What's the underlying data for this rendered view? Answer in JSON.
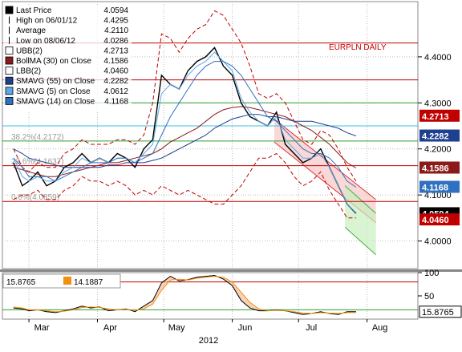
{
  "chart_data": [
    {
      "type": "line",
      "title": "EURPLN DAILY",
      "ylim": [
        3.94,
        4.52
      ],
      "yticks": [
        4.0,
        4.1,
        4.2,
        4.3,
        4.4
      ],
      "ytick_labels": [
        "4.0000",
        "4.1000",
        "4.2000",
        "4.3000",
        "4.4000"
      ],
      "x": [
        "2012-02-23",
        "2012-02-27",
        "2012-03-01",
        "2012-03-05",
        "2012-03-09",
        "2012-03-13",
        "2012-03-17",
        "2012-03-21",
        "2012-03-25",
        "2012-03-29",
        "2012-04-02",
        "2012-04-06",
        "2012-04-10",
        "2012-04-14",
        "2012-04-18",
        "2012-04-22",
        "2012-04-26",
        "2012-04-30",
        "2012-05-04",
        "2012-05-08",
        "2012-05-12",
        "2012-05-16",
        "2012-05-20",
        "2012-05-24",
        "2012-05-28",
        "2012-06-01",
        "2012-06-05",
        "2012-06-09",
        "2012-06-13",
        "2012-06-17",
        "2012-06-21",
        "2012-06-25",
        "2012-06-29",
        "2012-07-03",
        "2012-07-07",
        "2012-07-11",
        "2012-07-15",
        "2012-07-19",
        "2012-07-23",
        "2012-07-27"
      ],
      "xtick_labels": [
        {
          "label": "Mar",
          "date": "2012-03-01"
        },
        {
          "label": "Apr",
          "date": "2012-04-01"
        },
        {
          "label": "May",
          "date": "2012-05-01"
        },
        {
          "label": "Jun",
          "date": "2012-06-01"
        },
        {
          "label": "Jul",
          "date": "2012-07-01"
        },
        {
          "label": "Aug",
          "date": "2012-08-01"
        }
      ],
      "year_label": "2012",
      "series": [
        {
          "name": "Last Price",
          "color": "#000000",
          "values": [
            4.17,
            4.12,
            4.13,
            4.15,
            4.12,
            4.13,
            4.16,
            4.17,
            4.19,
            4.17,
            4.18,
            4.17,
            4.19,
            4.18,
            4.16,
            4.2,
            4.22,
            4.36,
            4.34,
            4.33,
            4.37,
            4.39,
            4.4,
            4.42,
            4.38,
            4.36,
            4.3,
            4.27,
            4.26,
            4.25,
            4.28,
            4.21,
            4.19,
            4.17,
            4.18,
            4.2,
            4.16,
            4.12,
            4.08,
            4.06
          ]
        },
        {
          "name": "UBB(2)",
          "color": "#c00000",
          "values": [
            4.2,
            4.16,
            4.15,
            4.17,
            4.16,
            4.16,
            4.19,
            4.2,
            4.22,
            4.21,
            4.21,
            4.21,
            4.22,
            4.22,
            4.21,
            4.23,
            4.3,
            4.45,
            4.44,
            4.41,
            4.44,
            4.46,
            4.47,
            4.5,
            4.49,
            4.46,
            4.43,
            4.38,
            4.32,
            4.31,
            4.32,
            4.3,
            4.26,
            4.22,
            4.21,
            4.24,
            4.23,
            4.2,
            4.16,
            4.13
          ]
        },
        {
          "name": "BollMA (30) on Close",
          "color": "#8b1a1a",
          "values": [
            4.16,
            4.155,
            4.15,
            4.145,
            4.14,
            4.14,
            4.145,
            4.15,
            4.155,
            4.16,
            4.165,
            4.17,
            4.17,
            4.175,
            4.18,
            4.185,
            4.19,
            4.2,
            4.215,
            4.225,
            4.235,
            4.245,
            4.26,
            4.275,
            4.285,
            4.29,
            4.292,
            4.29,
            4.285,
            4.28,
            4.275,
            4.27,
            4.26,
            4.25,
            4.24,
            4.225,
            4.21,
            4.19,
            4.17,
            4.1586
          ]
        },
        {
          "name": "LBB(2)",
          "color": "#c00000",
          "values": [
            4.09,
            4.1,
            4.1,
            4.11,
            4.09,
            4.09,
            4.11,
            4.12,
            4.14,
            4.13,
            4.13,
            4.12,
            4.13,
            4.12,
            4.1,
            4.11,
            4.1,
            4.12,
            4.11,
            4.1,
            4.11,
            4.1,
            4.09,
            4.08,
            4.08,
            4.1,
            4.12,
            4.15,
            4.18,
            4.18,
            4.19,
            4.17,
            4.14,
            4.12,
            4.13,
            4.15,
            4.11,
            4.08,
            4.05,
            4.05
          ]
        },
        {
          "name": "SMAVG (55) on Close",
          "color": "#1f3f8f",
          "values": [
            4.2,
            4.19,
            4.18,
            4.175,
            4.17,
            4.165,
            4.16,
            4.16,
            4.16,
            4.16,
            4.16,
            4.165,
            4.165,
            4.17,
            4.17,
            4.17,
            4.175,
            4.18,
            4.19,
            4.2,
            4.21,
            4.22,
            4.23,
            4.245,
            4.255,
            4.265,
            4.27,
            4.275,
            4.275,
            4.27,
            4.27,
            4.265,
            4.26,
            4.26,
            4.26,
            4.255,
            4.25,
            4.245,
            4.235,
            4.2282
          ]
        },
        {
          "name": "SMAVG (5) on Close",
          "color": "#5aa8e8",
          "values": [
            4.18,
            4.14,
            4.13,
            4.14,
            4.13,
            4.13,
            4.15,
            4.16,
            4.18,
            4.17,
            4.18,
            4.17,
            4.18,
            4.18,
            4.17,
            4.19,
            4.21,
            4.32,
            4.34,
            4.33,
            4.36,
            4.38,
            4.39,
            4.41,
            4.39,
            4.37,
            4.31,
            4.28,
            4.26,
            4.25,
            4.27,
            4.22,
            4.2,
            4.18,
            4.18,
            4.19,
            4.16,
            4.12,
            4.08,
            4.0612
          ]
        },
        {
          "name": "SMAVG (14) on Close",
          "color": "#3070c0",
          "values": [
            4.18,
            4.16,
            4.14,
            4.14,
            4.14,
            4.13,
            4.14,
            4.15,
            4.16,
            4.17,
            4.17,
            4.17,
            4.18,
            4.18,
            4.17,
            4.18,
            4.19,
            4.23,
            4.27,
            4.3,
            4.33,
            4.36,
            4.38,
            4.39,
            4.39,
            4.38,
            4.36,
            4.33,
            4.3,
            4.27,
            4.26,
            4.24,
            4.22,
            4.2,
            4.19,
            4.19,
            4.18,
            4.16,
            4.13,
            4.1168
          ]
        }
      ],
      "legend": {
        "placement": "top-left",
        "entries": [
          {
            "name": "Last Price",
            "value": "4.0594",
            "swatch": "#000000",
            "marker": "box"
          },
          {
            "name": "High on 06/01/12",
            "value": "4.4295",
            "swatch": "#000000",
            "marker": "high"
          },
          {
            "name": "Average",
            "value": "4.2110",
            "swatch": "#000000",
            "marker": "avg"
          },
          {
            "name": "Low on 08/06/12",
            "value": "4.0286",
            "swatch": "#000000",
            "marker": "low"
          },
          {
            "name": "UBB(2)",
            "value": "4.2713",
            "swatch": "#c00000",
            "marker": "box-outline"
          },
          {
            "name": "BollMA (30) on Close",
            "value": "4.1586",
            "swatch": "#8b1a1a",
            "marker": "box"
          },
          {
            "name": "LBB(2)",
            "value": "4.0460",
            "swatch": "#c00000",
            "marker": "box-outline"
          },
          {
            "name": "SMAVG (55) on Close",
            "value": "4.2282",
            "swatch": "#1f3f8f",
            "marker": "box"
          },
          {
            "name": "SMAVG (5) on Close",
            "value": "4.0612",
            "swatch": "#5aa8e8",
            "marker": "box"
          },
          {
            "name": "SMAVG (14) on Close",
            "value": "4.1168",
            "swatch": "#3070c0",
            "marker": "box"
          }
        ]
      },
      "price_tags": [
        {
          "value": "4.2713",
          "y": 4.2713,
          "color": "#c00000",
          "text_color": "#ffffff"
        },
        {
          "value": "4.2282",
          "y": 4.2282,
          "color": "#1f3f8f",
          "text_color": "#ffffff"
        },
        {
          "value": "4.1586",
          "y": 4.1586,
          "color": "#8b1a1a",
          "text_color": "#ffffff"
        },
        {
          "value": "4.1168",
          "y": 4.1168,
          "color": "#3070c0",
          "text_color": "#ffffff"
        },
        {
          "value": "4.0594",
          "y": 4.0594,
          "color": "#000000",
          "text_color": "#ffffff"
        },
        {
          "value": "4.0460",
          "y": 4.046,
          "color": "#c00000",
          "text_color": "#ffffff"
        }
      ],
      "fib_levels": [
        {
          "label": "38.2%(4.2172)",
          "value": 4.2172
        },
        {
          "label": "23.6%(4.1637)",
          "value": 4.1637
        },
        {
          "label": "0.0%(4.0859)",
          "value": 4.0859
        }
      ],
      "horizontal_lines": [
        {
          "value": 4.43,
          "color": "#c00000"
        },
        {
          "value": 4.35,
          "color": "#c00000"
        },
        {
          "value": 4.3,
          "color": "#2ca02c"
        },
        {
          "value": 4.25,
          "color": "#40c0e0"
        },
        {
          "value": 4.2172,
          "color": "#2ca02c"
        },
        {
          "value": 4.1637,
          "color": "#c00000"
        },
        {
          "value": 4.0859,
          "color": "#c00000"
        }
      ],
      "channels": [
        {
          "color": "#e03030",
          "fill": "#f8c8c8",
          "upper": [
            [
              "2012-06-20",
              4.265
            ],
            [
              "2012-08-05",
              4.09
            ]
          ],
          "lower": [
            [
              "2012-06-20",
              4.215
            ],
            [
              "2012-08-05",
              4.04
            ]
          ]
        },
        {
          "color": "#40b040",
          "fill": "#c8f0c0",
          "upper": [
            [
              "2012-07-22",
              4.12
            ],
            [
              "2012-08-05",
              4.06
            ]
          ],
          "lower": [
            [
              "2012-07-22",
              4.03
            ],
            [
              "2012-08-05",
              3.97
            ]
          ]
        }
      ],
      "grid": true
    },
    {
      "type": "line",
      "ylim": [
        0,
        100
      ],
      "yticks": [
        0,
        50,
        100
      ],
      "ytick_labels": [
        "",
        "50",
        "100"
      ],
      "series": [
        {
          "name": "",
          "color": "#000000",
          "values": [
            24,
            22,
            18,
            20,
            16,
            14,
            18,
            22,
            28,
            24,
            26,
            18,
            20,
            22,
            16,
            28,
            40,
            78,
            92,
            82,
            85,
            90,
            92,
            94,
            86,
            72,
            40,
            24,
            18,
            18,
            20,
            18,
            14,
            10,
            12,
            16,
            12,
            10,
            16,
            15.8765
          ]
        },
        {
          "name": "",
          "color": "#f0900c",
          "values": [
            26,
            24,
            20,
            20,
            18,
            16,
            17,
            20,
            25,
            26,
            25,
            22,
            20,
            21,
            19,
            22,
            32,
            62,
            84,
            86,
            84,
            88,
            90,
            92,
            90,
            80,
            58,
            36,
            22,
            18,
            19,
            18,
            16,
            13,
            12,
            14,
            13,
            12,
            14,
            14.1887
          ]
        }
      ],
      "reference_lines": [
        80,
        20
      ],
      "legend": {
        "placement": "top-left",
        "entries": [
          {
            "value": "15.8765",
            "swatch": "#000000"
          },
          {
            "value": "14.1887",
            "swatch": "#f0900c"
          }
        ]
      },
      "last_value_tag": "15.8765",
      "grid": true
    }
  ]
}
